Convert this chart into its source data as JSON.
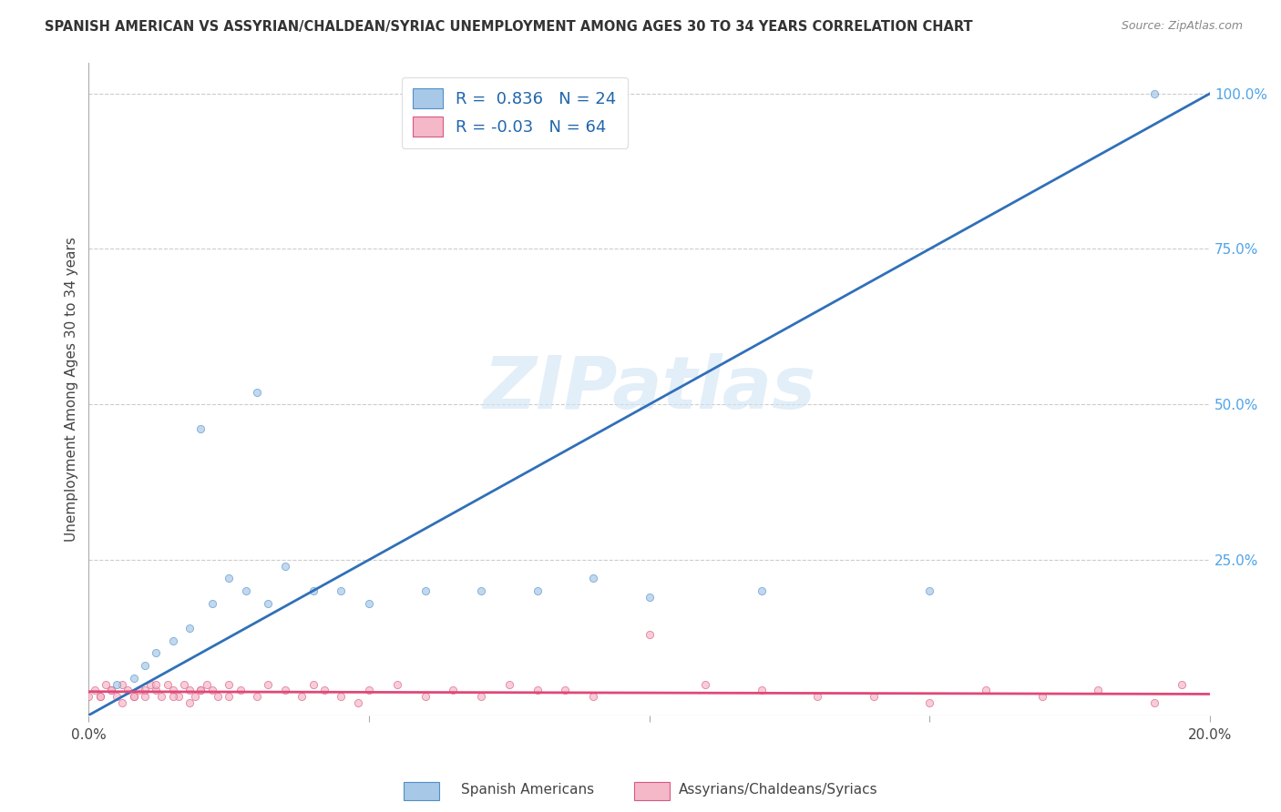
{
  "title": "SPANISH AMERICAN VS ASSYRIAN/CHALDEAN/SYRIAC UNEMPLOYMENT AMONG AGES 30 TO 34 YEARS CORRELATION CHART",
  "source": "Source: ZipAtlas.com",
  "ylabel": "Unemployment Among Ages 30 to 34 years",
  "xlim": [
    0.0,
    0.2
  ],
  "ylim": [
    0.0,
    1.05
  ],
  "xticks": [
    0.0,
    0.05,
    0.1,
    0.15,
    0.2
  ],
  "xticklabels": [
    "0.0%",
    "",
    "",
    "",
    "20.0%"
  ],
  "yticks_right": [
    0.0,
    0.25,
    0.5,
    0.75,
    1.0
  ],
  "yticklabels_right": [
    "",
    "25.0%",
    "50.0%",
    "75.0%",
    "100.0%"
  ],
  "blue_R": 0.836,
  "blue_N": 24,
  "pink_R": -0.03,
  "pink_N": 64,
  "blue_scatter_x": [
    0.005,
    0.008,
    0.01,
    0.012,
    0.015,
    0.018,
    0.02,
    0.022,
    0.025,
    0.028,
    0.03,
    0.032,
    0.035,
    0.04,
    0.045,
    0.05,
    0.06,
    0.07,
    0.08,
    0.09,
    0.1,
    0.12,
    0.15,
    0.19
  ],
  "blue_scatter_y": [
    0.05,
    0.06,
    0.08,
    0.1,
    0.12,
    0.14,
    0.46,
    0.18,
    0.22,
    0.2,
    0.52,
    0.18,
    0.24,
    0.2,
    0.2,
    0.18,
    0.2,
    0.2,
    0.2,
    0.22,
    0.19,
    0.2,
    0.2,
    1.0
  ],
  "pink_scatter_x": [
    0.0,
    0.001,
    0.002,
    0.003,
    0.004,
    0.005,
    0.006,
    0.007,
    0.008,
    0.009,
    0.01,
    0.011,
    0.012,
    0.013,
    0.014,
    0.015,
    0.016,
    0.017,
    0.018,
    0.019,
    0.02,
    0.021,
    0.022,
    0.023,
    0.025,
    0.027,
    0.03,
    0.032,
    0.035,
    0.038,
    0.04,
    0.042,
    0.045,
    0.048,
    0.05,
    0.055,
    0.06,
    0.065,
    0.07,
    0.075,
    0.08,
    0.085,
    0.09,
    0.1,
    0.11,
    0.12,
    0.13,
    0.14,
    0.15,
    0.16,
    0.17,
    0.18,
    0.19,
    0.195,
    0.002,
    0.004,
    0.006,
    0.008,
    0.01,
    0.012,
    0.015,
    0.018,
    0.02,
    0.025
  ],
  "pink_scatter_y": [
    0.03,
    0.04,
    0.03,
    0.05,
    0.04,
    0.03,
    0.05,
    0.04,
    0.03,
    0.04,
    0.03,
    0.05,
    0.04,
    0.03,
    0.05,
    0.04,
    0.03,
    0.05,
    0.04,
    0.03,
    0.04,
    0.05,
    0.04,
    0.03,
    0.05,
    0.04,
    0.03,
    0.05,
    0.04,
    0.03,
    0.05,
    0.04,
    0.03,
    0.02,
    0.04,
    0.05,
    0.03,
    0.04,
    0.03,
    0.05,
    0.04,
    0.04,
    0.03,
    0.13,
    0.05,
    0.04,
    0.03,
    0.03,
    0.02,
    0.04,
    0.03,
    0.04,
    0.02,
    0.05,
    0.03,
    0.04,
    0.02,
    0.03,
    0.04,
    0.05,
    0.03,
    0.02,
    0.04,
    0.03
  ],
  "blue_line_x": [
    0.0,
    0.2
  ],
  "blue_line_y": [
    0.0,
    1.0
  ],
  "pink_line_x": [
    0.0,
    0.2
  ],
  "pink_line_y": [
    0.038,
    0.034
  ],
  "blue_color": "#a8c8e8",
  "pink_color": "#f4b8c8",
  "blue_edge_color": "#5090c8",
  "pink_edge_color": "#d85880",
  "blue_line_color": "#3070b8",
  "pink_line_color": "#e04878",
  "grid_color": "#cccccc",
  "watermark": "ZIPatlas",
  "legend_blue_label": "Spanish Americans",
  "legend_pink_label": "Assyrians/Chaldeans/Syriacs",
  "background_color": "#ffffff",
  "scatter_size": 35
}
